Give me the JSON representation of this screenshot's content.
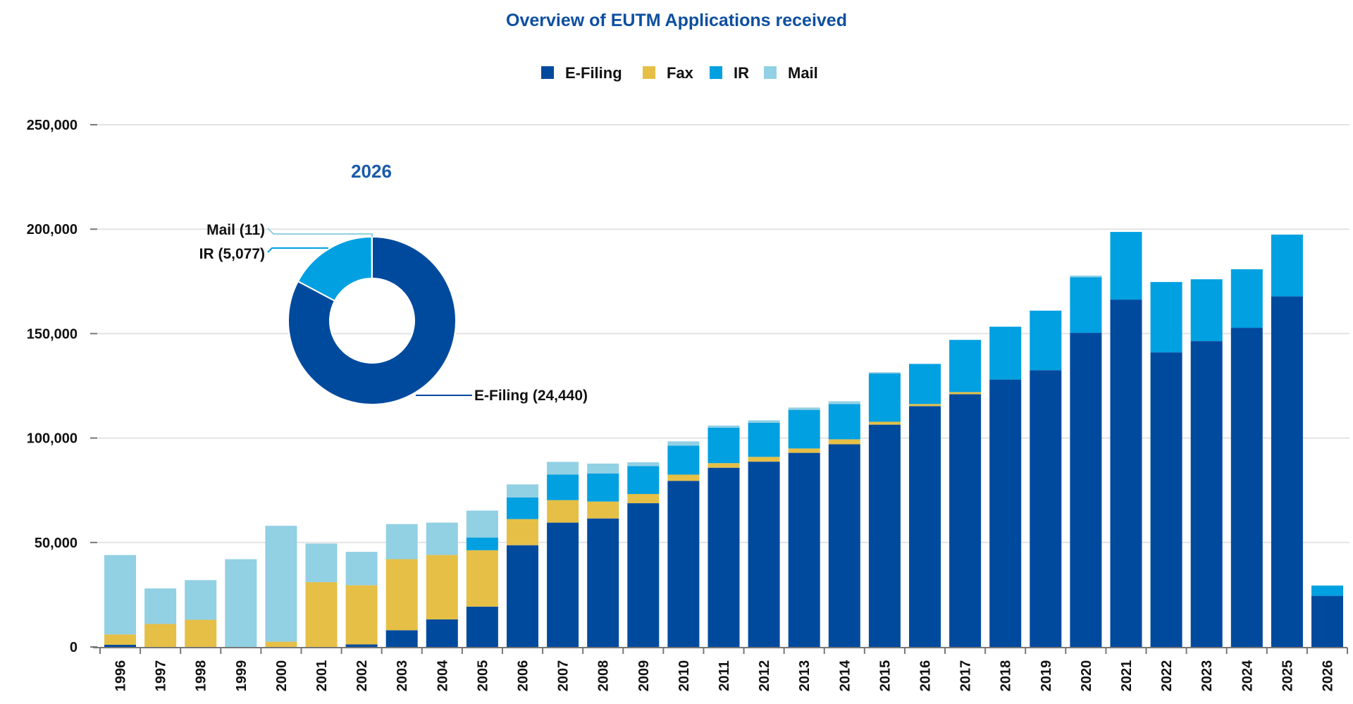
{
  "chart_data": {
    "type": "bar",
    "stacked": true,
    "title": "Overview of EUTM Applications received",
    "xlabel": "",
    "ylabel": "",
    "ylim": [
      0,
      250000
    ],
    "yticks": [
      0,
      50000,
      100000,
      150000,
      200000,
      250000
    ],
    "ytick_labels": [
      "0",
      "50,000",
      "100,000",
      "150,000",
      "200,000",
      "250,000"
    ],
    "grid": true,
    "legend_position": "top-center",
    "categories": [
      "1996",
      "1997",
      "1998",
      "1999",
      "2000",
      "2001",
      "2002",
      "2003",
      "2004",
      "2005",
      "2006",
      "2007",
      "2008",
      "2009",
      "2010",
      "2011",
      "2012",
      "2013",
      "2014",
      "2015",
      "2016",
      "2017",
      "2018",
      "2019",
      "2020",
      "2021",
      "2022",
      "2023",
      "2024",
      "2025",
      "2026"
    ],
    "series": [
      {
        "name": "E-Filing",
        "color": "#004a9e",
        "values": [
          1000,
          0,
          0,
          0,
          0,
          0,
          1200,
          8000,
          13200,
          19300,
          48700,
          59500,
          61500,
          68800,
          79500,
          85800,
          88700,
          92900,
          97000,
          106400,
          115300,
          121000,
          128000,
          132500,
          150400,
          166300,
          141000,
          146400,
          152800,
          167800,
          24440
        ]
      },
      {
        "name": "Fax",
        "color": "#e6bf46",
        "values": [
          5000,
          11000,
          13000,
          0,
          2500,
          31000,
          28300,
          34000,
          30800,
          27000,
          12500,
          10800,
          8100,
          4400,
          3000,
          2200,
          2300,
          2100,
          2400,
          1400,
          1000,
          1000,
          0,
          0,
          0,
          0,
          0,
          0,
          0,
          0,
          0
        ]
      },
      {
        "name": "IR",
        "color": "#00a0e1",
        "values": [
          0,
          0,
          0,
          0,
          0,
          0,
          0,
          0,
          0,
          6100,
          10400,
          12200,
          13400,
          13400,
          13900,
          17000,
          16300,
          18500,
          16900,
          23100,
          19200,
          25000,
          25300,
          28500,
          26600,
          32400,
          33700,
          29600,
          28000,
          29600,
          5077
        ]
      },
      {
        "name": "Mail",
        "color": "#92d0e4",
        "values": [
          38000,
          17000,
          19000,
          42000,
          55500,
          18500,
          16000,
          16800,
          15500,
          12900,
          6200,
          6100,
          4800,
          1800,
          2000,
          1000,
          1200,
          1100,
          1300,
          600,
          0,
          0,
          0,
          0,
          800,
          0,
          0,
          0,
          0,
          0,
          11
        ]
      }
    ],
    "inset": {
      "type": "pie",
      "donut": true,
      "title": "2026",
      "slices": [
        {
          "name": "E-Filing",
          "value": 24440,
          "label": "E-Filing (24,440)",
          "color": "#004a9e"
        },
        {
          "name": "IR",
          "value": 5077,
          "label": "IR (5,077)",
          "color": "#00a0e1"
        },
        {
          "name": "Mail",
          "value": 11,
          "label": "Mail (11)",
          "color": "#92d0e4"
        }
      ]
    }
  }
}
